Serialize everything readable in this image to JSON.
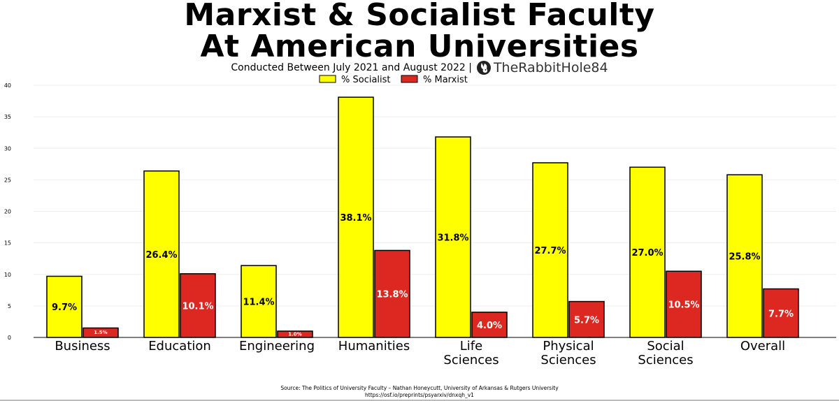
{
  "header": {
    "title_line_1": "Marxist & Socialist Faculty",
    "title_line_2": "At American Universities",
    "subtitle": "Conducted Between July 2021 and August 2022 |",
    "brand_name": "TheRabbitHole84",
    "brand_icon": "rabbit-head-icon"
  },
  "footer": {
    "source_line_1": "Source: The Politics of University Faculty – Nathan Honeycutt, University of Arkansas & Rutgers University",
    "source_line_2": "https://osf.io/preprints/psyarxiv/dnxqh_v1"
  },
  "chart_data": {
    "type": "bar",
    "categories": [
      "Business",
      "Education",
      "Engineering",
      "Humanities",
      "Life Sciences",
      "Physical Sciences",
      "Social Sciences",
      "Overall"
    ],
    "series": [
      {
        "name": "% Socialist",
        "color": "#ffff00",
        "values": [
          9.7,
          26.4,
          11.4,
          38.1,
          31.8,
          27.7,
          27.0,
          25.8
        ]
      },
      {
        "name": "% Marxist",
        "color": "#dc2820",
        "values": [
          1.5,
          10.1,
          1.0,
          13.8,
          4.0,
          5.7,
          10.5,
          7.7
        ]
      }
    ],
    "ylim": [
      0,
      40
    ],
    "yticks": [
      0,
      5,
      10,
      15,
      20,
      25,
      30,
      35,
      40
    ],
    "grid": true,
    "legend": "top-center",
    "value_format": "percent-1-decimal"
  }
}
